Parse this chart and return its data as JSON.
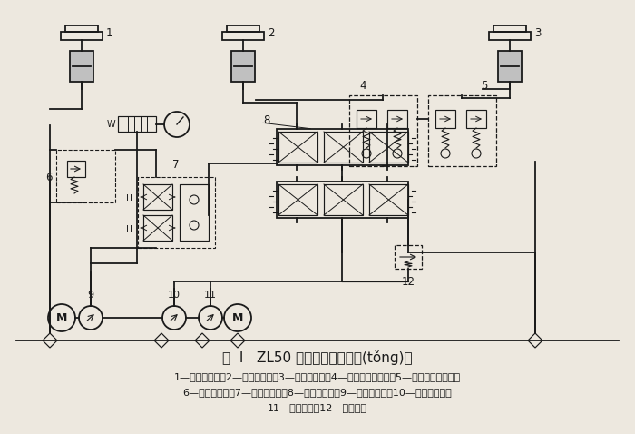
{
  "title_line": "图  Ⅰ   ZL50 型裝載機液壓系統(tǒng)圖",
  "caption_line1": "1—轉向液壓缸；2—動臂液壓缸；3—鏟斗液壓缸；4—后雙作用安全閥；5—前雙作用安全閥；",
  "caption_line2": "6—轉向溢流閥；7—流量轉換閥；8—多路換向閥；9—轉向液壓泵；10—輔助液壓泵；",
  "caption_line3": "11—主液壓泵；12—總安全閥",
  "bg_color": "#ede8df",
  "black": "#1a1a1a",
  "gray_fill": "#c0c0c0",
  "lw_main": 1.3,
  "lw_thin": 0.85
}
